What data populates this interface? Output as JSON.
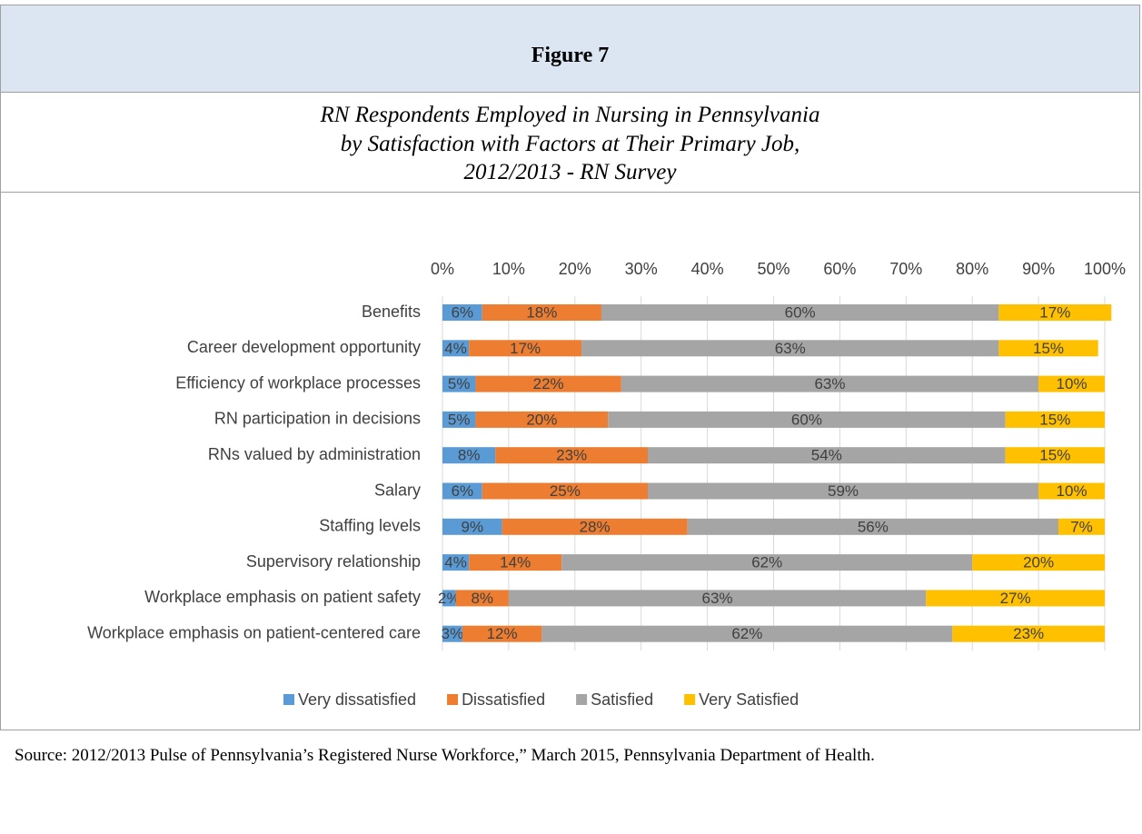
{
  "figure_label": "Figure 7",
  "chart_data": {
    "type": "bar",
    "horizontal": true,
    "stacked": true,
    "title": [
      "RN Respondents Employed in Nursing in Pennsylvania",
      "by Satisfaction with Factors at Their Primary Job,",
      "2012/2013 - RN Survey"
    ],
    "categories": [
      "Benefits",
      "Career development opportunity",
      "Efficiency of workplace processes",
      "RN participation in decisions",
      "RNs valued by administration",
      "Salary",
      "Staffing levels",
      "Supervisory relationship",
      "Workplace emphasis on patient safety",
      "Workplace emphasis on patient-centered care"
    ],
    "series": [
      {
        "name": "Very dissatisfied",
        "color": "#5b9bd5",
        "values": [
          6,
          4,
          5,
          5,
          8,
          6,
          9,
          4,
          2,
          3
        ],
        "value_labels": [
          "6%",
          "4%",
          "5%",
          "5%",
          "8%",
          "6%",
          "9%",
          "4%",
          "2%",
          "3%"
        ]
      },
      {
        "name": "Dissatisfied",
        "color": "#ed7d31",
        "values": [
          18,
          17,
          22,
          20,
          23,
          25,
          28,
          14,
          8,
          12
        ],
        "value_labels": [
          "18%",
          "17%",
          "22%",
          "20%",
          "23%",
          "25%",
          "28%",
          "14%",
          "8%",
          "12%"
        ]
      },
      {
        "name": "Satisfied",
        "color": "#a5a5a5",
        "values": [
          60,
          63,
          63,
          60,
          54,
          59,
          56,
          62,
          63,
          62
        ],
        "value_labels": [
          "60%",
          "63%",
          "63%",
          "60%",
          "54%",
          "59%",
          "56%",
          "62%",
          "63%",
          "62%"
        ]
      },
      {
        "name": "Very Satisfied",
        "color": "#ffc000",
        "values": [
          17,
          15,
          10,
          15,
          15,
          10,
          7,
          20,
          27,
          23
        ],
        "value_labels": [
          "17%",
          "15%",
          "10%",
          "15%",
          "15%",
          "10%",
          "7%",
          "20%",
          "27%",
          "23%"
        ]
      }
    ],
    "xlim": [
      0,
      100
    ],
    "xticks": [
      {
        "value": 0,
        "label": "0%"
      },
      {
        "value": 10,
        "label": "10%"
      },
      {
        "value": 20,
        "label": "20%"
      },
      {
        "value": 30,
        "label": "30%"
      },
      {
        "value": 40,
        "label": "40%"
      },
      {
        "value": 50,
        "label": "50%"
      },
      {
        "value": 60,
        "label": "60%"
      },
      {
        "value": 70,
        "label": "70%"
      },
      {
        "value": 80,
        "label": "80%"
      },
      {
        "value": 90,
        "label": "90%"
      },
      {
        "value": 100,
        "label": "100%"
      }
    ],
    "grid": true,
    "legend": "bottom"
  },
  "source": "Source: 2012/2013 Pulse of Pennsylvania’s Registered Nurse Workforce,” March 2015, Pennsylvania Department of Health."
}
